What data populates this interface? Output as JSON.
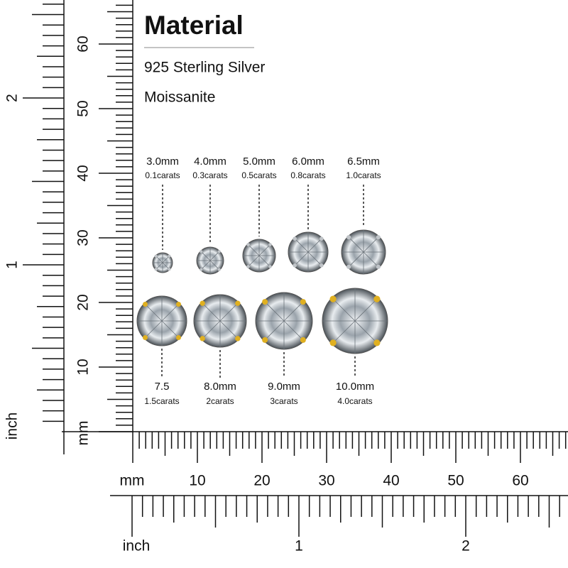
{
  "header": {
    "title": "Material",
    "lines": [
      "925 Sterling Silver",
      "Moissanite"
    ]
  },
  "stones": {
    "top": [
      {
        "size": "3.0mm",
        "weight": "0.1carats"
      },
      {
        "size": "4.0mm",
        "weight": "0.3carats"
      },
      {
        "size": "5.0mm",
        "weight": "0.5carats"
      },
      {
        "size": "6.0mm",
        "weight": "0.8carats"
      },
      {
        "size": "6.5mm",
        "weight": "1.0carats"
      }
    ],
    "bottom": [
      {
        "size": "7.5",
        "weight": "1.5carats"
      },
      {
        "size": "8.0mm",
        "weight": "2carats"
      },
      {
        "size": "9.0mm",
        "weight": "3carats"
      },
      {
        "size": "10.0mm",
        "weight": "4.0carats"
      }
    ]
  },
  "rulers": {
    "vertical": {
      "mm_label": "mm",
      "mm_ticks": [
        10,
        20,
        30,
        40,
        50,
        60
      ],
      "inch_label": "inch",
      "inch_ticks": [
        1,
        2
      ]
    },
    "horizontal": {
      "mm_label": "mm",
      "mm_ticks": [
        10,
        20,
        30,
        40,
        50,
        60
      ],
      "inch_label": "inch",
      "inch_ticks": [
        1,
        2
      ]
    }
  }
}
